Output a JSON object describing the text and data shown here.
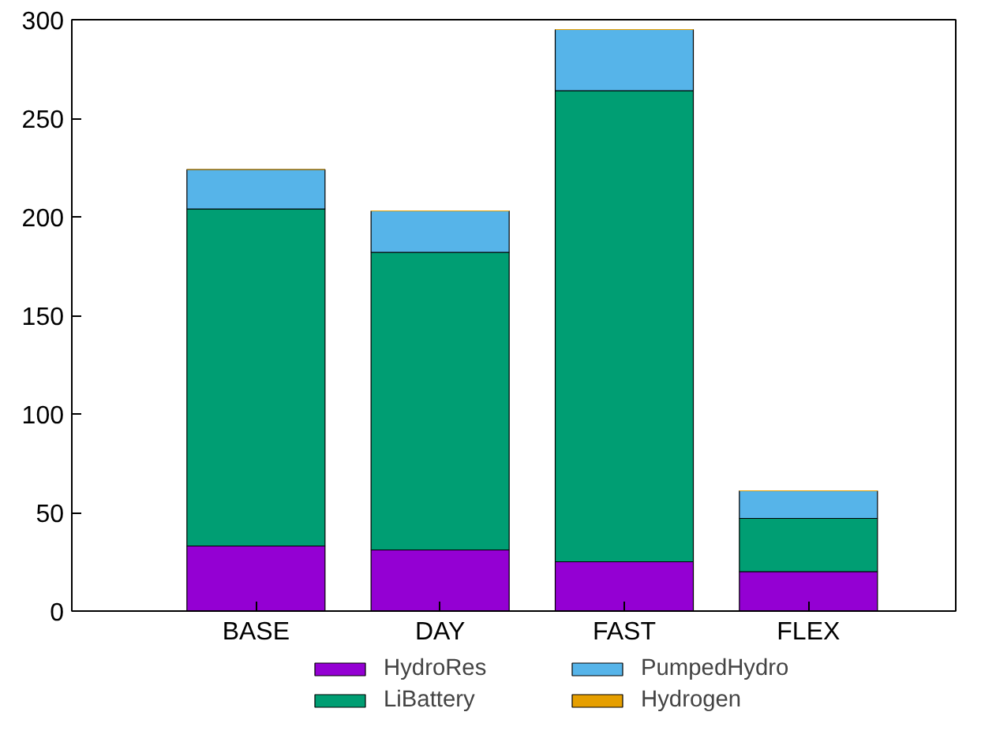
{
  "chart_data": {
    "type": "bar",
    "stacked": true,
    "categories": [
      "BASE",
      "DAY",
      "FAST",
      "FLEX"
    ],
    "series": [
      {
        "name": "HydroRes",
        "color": "#9400d3",
        "values": [
          33,
          31,
          25,
          20
        ]
      },
      {
        "name": "LiBattery",
        "color": "#009e73",
        "values": [
          171,
          151,
          239,
          27
        ]
      },
      {
        "name": "PumpedHydro",
        "color": "#56b4e9",
        "values": [
          20,
          21,
          31,
          14
        ]
      },
      {
        "name": "Hydrogen",
        "color": "#e69f00",
        "values": [
          0,
          0,
          0,
          0
        ]
      }
    ],
    "ylim": [
      0,
      300
    ],
    "yticks": [
      0,
      50,
      100,
      150,
      200,
      250,
      300
    ],
    "grid": false,
    "legend": "bottom"
  }
}
